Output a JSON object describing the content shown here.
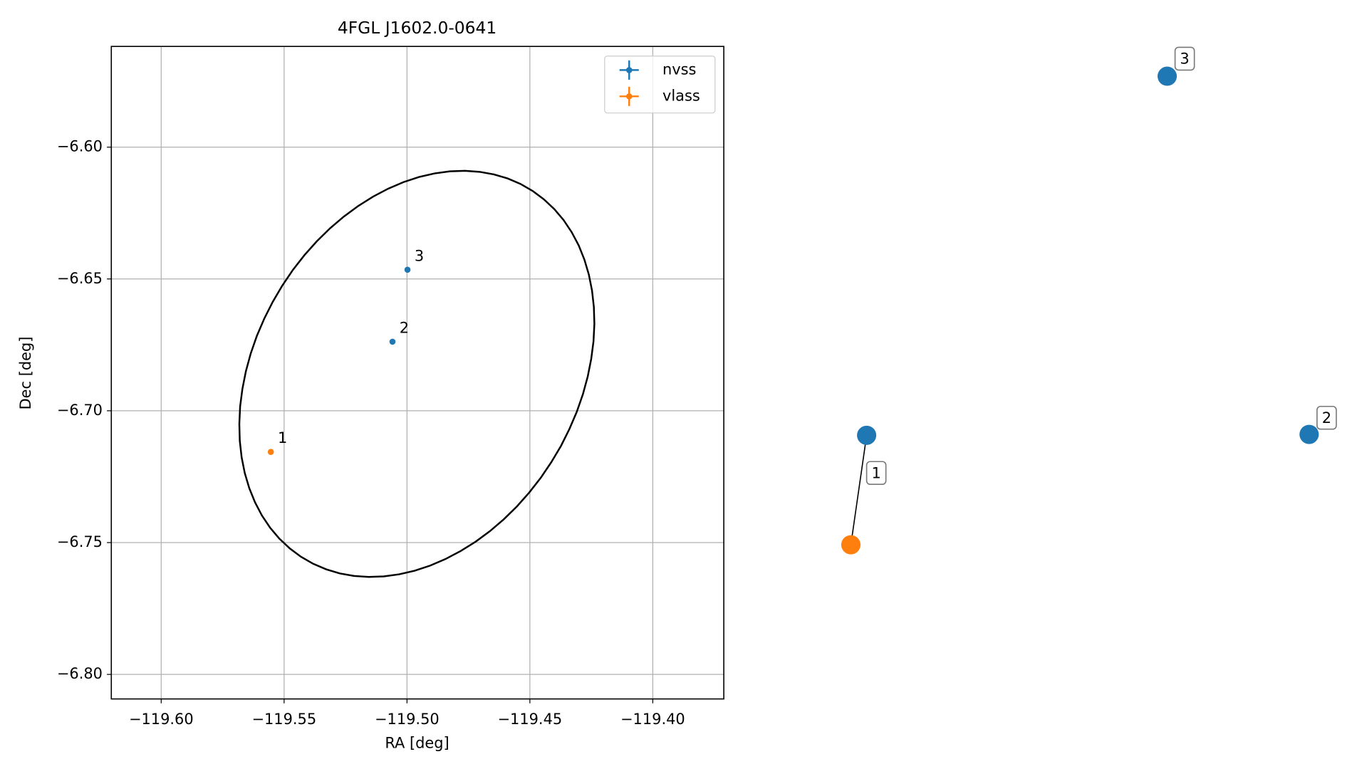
{
  "chart_data": {
    "type": "scatter",
    "title": "4FGL J1602.0-0641",
    "x_label": "RA [deg]",
    "y_label": "Dec [deg]",
    "series": [
      {
        "name": "nvss",
        "color": "#1f77b4",
        "x": [
          -119.5059,
          -119.4998
        ],
        "values": [
          -6.6738,
          -6.6465
        ],
        "labels": [
          "2",
          "3"
        ]
      },
      {
        "name": "vlass",
        "color": "#ff7f0e",
        "x": [
          -119.5554
        ],
        "values": [
          -6.7156
        ],
        "labels": [
          "1"
        ]
      }
    ],
    "ellipse": {
      "center_x": -119.496,
      "center_y": -6.686,
      "semi_major": 0.084,
      "semi_minor": 0.064,
      "angle": 52,
      "color": "#000000"
    },
    "xlim": [
      -119.6203,
      -119.3711
    ],
    "ylim": [
      -6.8093,
      -6.5618
    ],
    "xticks": [
      {
        "value": -119.6,
        "label": "−119.60"
      },
      {
        "value": -119.55,
        "label": "−119.55"
      },
      {
        "value": -119.5,
        "label": "−119.50"
      },
      {
        "value": -119.45,
        "label": "−119.45"
      },
      {
        "value": -119.4,
        "label": "−119.40"
      }
    ],
    "yticks": [
      {
        "value": -6.6,
        "label": "−6.60"
      },
      {
        "value": -6.65,
        "label": "−6.65"
      },
      {
        "value": -6.7,
        "label": "−6.70"
      },
      {
        "value": -6.75,
        "label": "−6.75"
      },
      {
        "value": -6.8,
        "label": "−6.80"
      }
    ],
    "grid": true,
    "legend": "upper right"
  },
  "graph": {
    "nodes": [
      {
        "color": "#1f77b4"
      },
      {
        "color": "#ff7f0e"
      },
      {
        "color": "#1f77b4"
      },
      {
        "color": "#1f77b4"
      }
    ],
    "edges": [
      [
        0,
        1
      ]
    ],
    "labels": [
      "1",
      "2",
      "3"
    ]
  }
}
